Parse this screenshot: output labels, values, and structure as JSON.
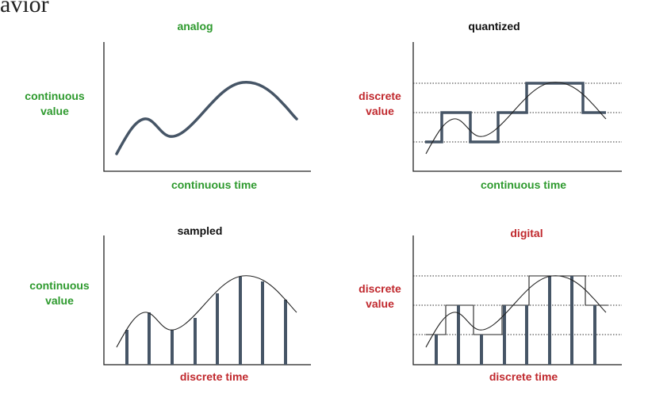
{
  "heading_fragment": "avior",
  "panels": {
    "analog": {
      "title": "analog",
      "y_label": "continuous\nvalue",
      "x_label": "continuous time"
    },
    "quantized": {
      "title": "quantized",
      "y_label": "discrete\nvalue",
      "x_label": "continuous time"
    },
    "sampled": {
      "title": "sampled",
      "y_label": "continuous\nvalue",
      "x_label": "discrete time"
    },
    "digital": {
      "title": "digital",
      "y_label": "discrete\nvalue",
      "x_label": "discrete time"
    }
  },
  "colors": {
    "green_label": "#2e9a2e",
    "red_label": "#c0282d",
    "signal": "#465566",
    "axis": "#222222"
  }
}
